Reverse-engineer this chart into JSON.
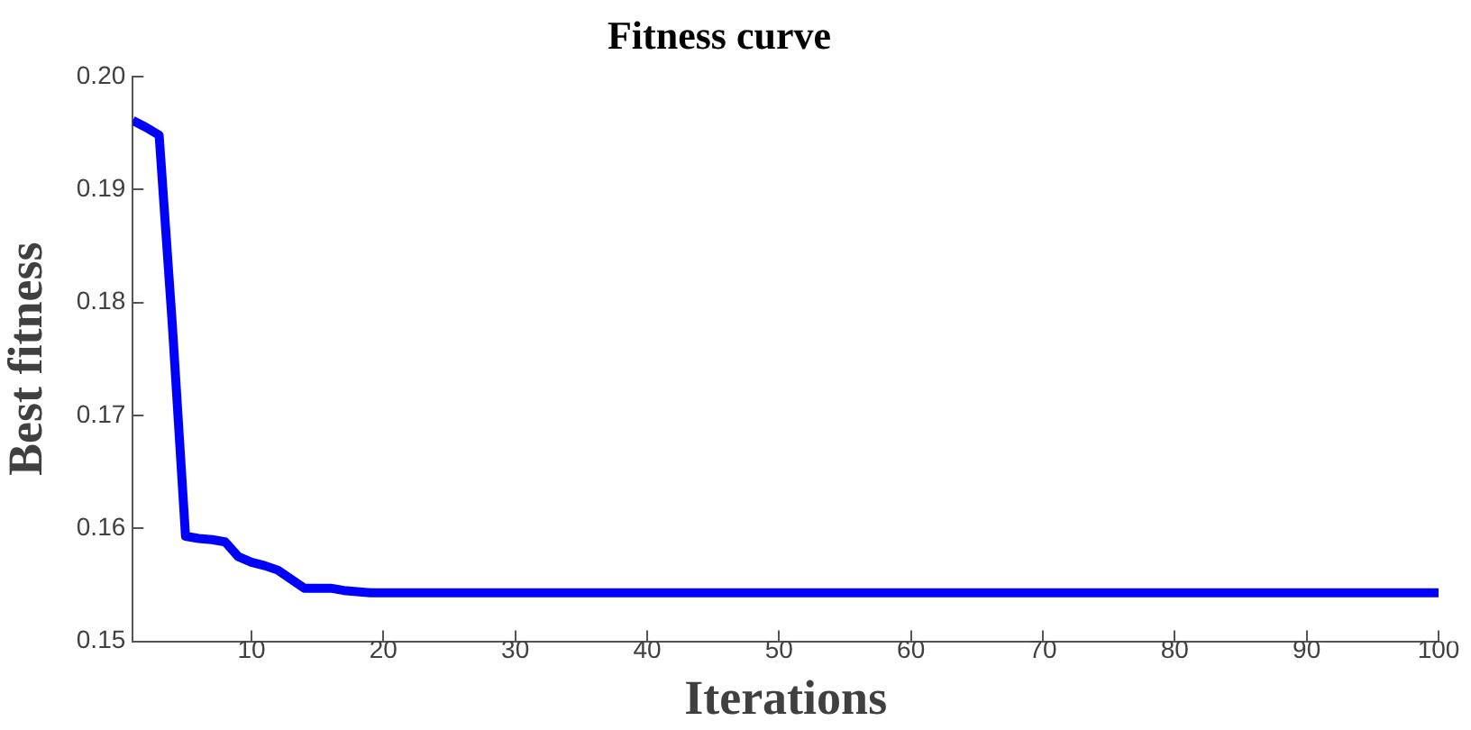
{
  "chart_data": {
    "type": "line",
    "title": "Fitness curve",
    "xlabel": "Iterations",
    "ylabel": "Best fitness",
    "series": [
      {
        "color": "#0000ff",
        "x": [
          1,
          2,
          3,
          4,
          5,
          6,
          7,
          8,
          9,
          10,
          11,
          12,
          13,
          14,
          15,
          16,
          17,
          18,
          19,
          20,
          100
        ],
        "values": [
          0.1961,
          0.1955,
          0.1948,
          0.178,
          0.1593,
          0.1591,
          0.159,
          0.1588,
          0.1575,
          0.157,
          0.1567,
          0.1563,
          0.1555,
          0.1547,
          0.1547,
          0.1547,
          0.1545,
          0.1544,
          0.1543,
          0.1543,
          0.1543
        ]
      }
    ],
    "xlim": [
      1,
      100
    ],
    "xticks": [
      10,
      20,
      30,
      40,
      50,
      60,
      70,
      80,
      90,
      100
    ],
    "ylim": [
      0.15,
      0.2
    ],
    "yticks": [
      0.15,
      0.16,
      0.17,
      0.18,
      0.19,
      {
        "value": 0.2,
        "label": "0.20"
      }
    ],
    "grid": false,
    "legend": false,
    "marker": "none",
    "line_style": "solid"
  }
}
